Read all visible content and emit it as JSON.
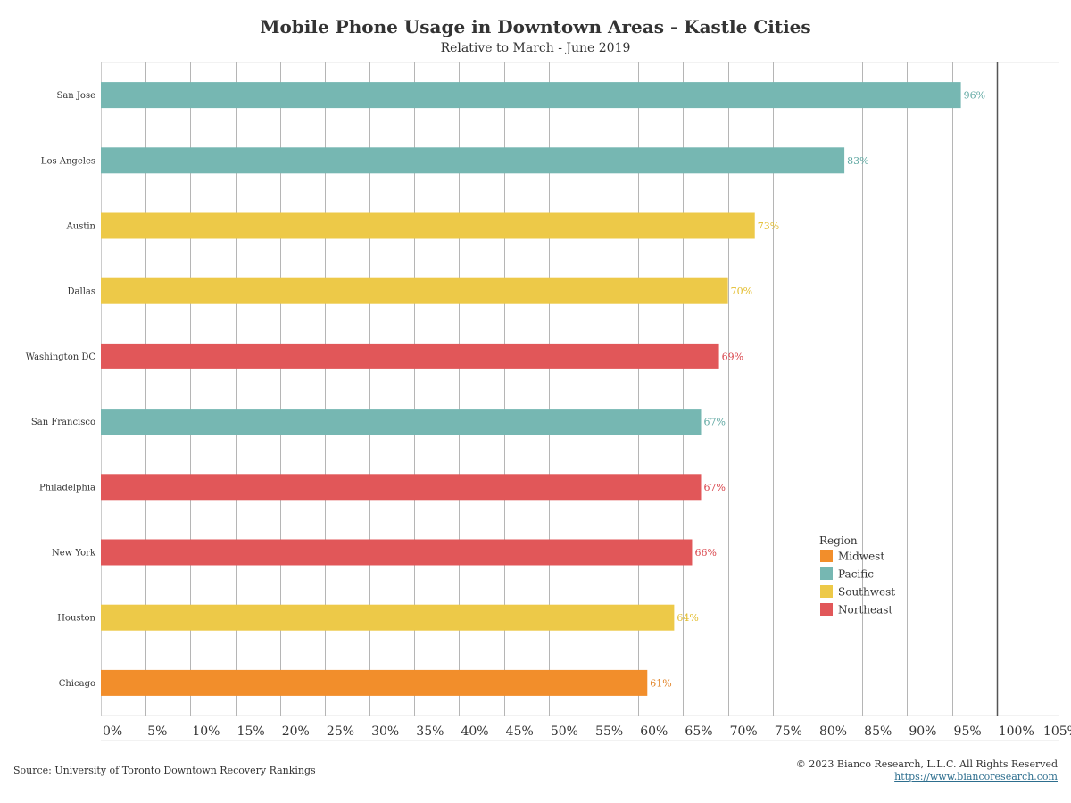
{
  "chart_data": {
    "type": "bar",
    "orientation": "horizontal",
    "title": "Mobile Phone Usage in Downtown Areas - Kastle Cities",
    "subtitle": "Relative to March - June 2019",
    "categories": [
      "San Jose",
      "Los Angeles",
      "Austin",
      "Dallas",
      "Washington DC",
      "San Francisco",
      "Philadelphia",
      "New York",
      "Houston",
      "Chicago"
    ],
    "values": [
      96,
      83,
      73,
      70,
      69,
      67,
      67,
      66,
      64,
      61
    ],
    "value_labels": [
      "96%",
      "83%",
      "73%",
      "70%",
      "69%",
      "67%",
      "67%",
      "66%",
      "64%",
      "61%"
    ],
    "regions": [
      "Pacific",
      "Pacific",
      "Southwest",
      "Southwest",
      "Northeast",
      "Pacific",
      "Northeast",
      "Northeast",
      "Southwest",
      "Midwest"
    ],
    "xlim": [
      0,
      107
    ],
    "x_ticks": [
      0,
      5,
      10,
      15,
      20,
      25,
      30,
      35,
      40,
      45,
      50,
      55,
      60,
      65,
      70,
      75,
      80,
      85,
      90,
      95,
      100,
      105
    ],
    "x_tick_labels": [
      "0%",
      "5%",
      "10%",
      "15%",
      "20%",
      "25%",
      "30%",
      "35%",
      "40%",
      "45%",
      "50%",
      "55%",
      "60%",
      "65%",
      "70%",
      "75%",
      "80%",
      "85%",
      "90%",
      "95%",
      "100%",
      "105%"
    ],
    "reference_line": 100,
    "grid": true,
    "legend": {
      "title": "Region",
      "placement": "bottom-right",
      "entries": [
        {
          "name": "Midwest",
          "color": "#f28e2b"
        },
        {
          "name": "Pacific",
          "color": "#76b7b2"
        },
        {
          "name": "Southwest",
          "color": "#edc948"
        },
        {
          "name": "Northeast",
          "color": "#e15759"
        }
      ]
    },
    "label_colors": {
      "Midwest": "#e07f1f",
      "Pacific": "#5fa8a2",
      "Southwest": "#e3bd2e",
      "Northeast": "#d9434a"
    }
  },
  "footer": {
    "source": "Source: University of Toronto Downtown Recovery Rankings",
    "copyright": "© 2023 Bianco Research, L.L.C. All Rights Reserved",
    "url": "https://www.biancoresearch.com"
  }
}
